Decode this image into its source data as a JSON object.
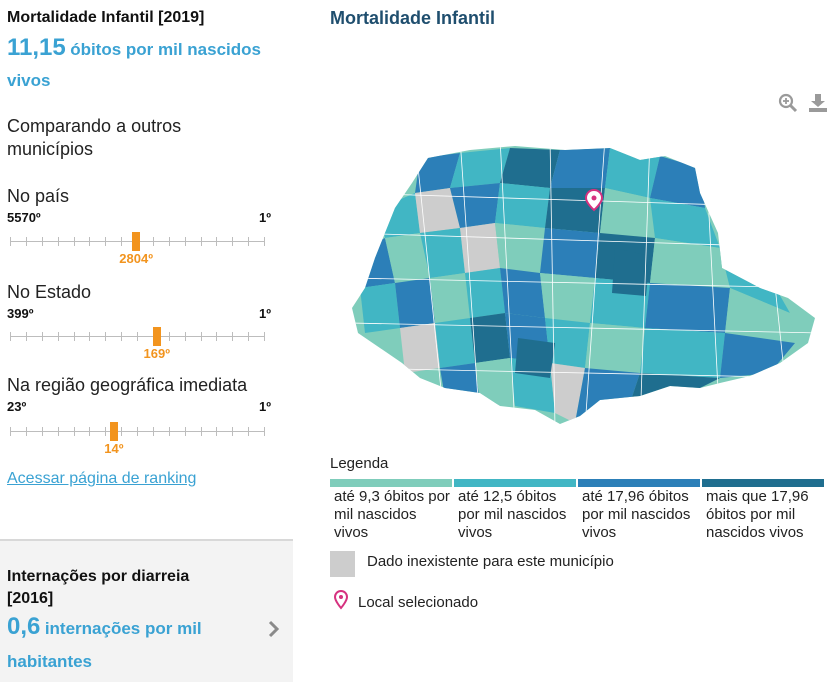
{
  "indicator": {
    "title": "Mortalidade Infantil [2019]",
    "value": "11,15",
    "unit": "óbitos por mil nascidos vivos"
  },
  "comparison": {
    "title": "Comparando a outros municípios",
    "rankings": [
      {
        "label": "No país",
        "low_end": "5570º",
        "high_end": "1º",
        "position": "2804º",
        "total": 5570,
        "rank": 2804
      },
      {
        "label": "No Estado",
        "low_end": "399º",
        "high_end": "1º",
        "position": "169º",
        "total": 399,
        "rank": 169
      },
      {
        "label": "Na região geográfica imediata",
        "low_end": "23º",
        "high_end": "1º",
        "position": "14º",
        "total": 23,
        "rank": 14
      }
    ],
    "ranking_link": "Acessar página de ranking"
  },
  "next_indicator": {
    "title": "Internações por diarreia [2016]",
    "value": "0,6",
    "unit": "internações por mil habitantes",
    "icon": "chevron-right-icon"
  },
  "map": {
    "title": "Mortalidade Infantil",
    "tools": {
      "zoom_icon": "zoom-in-icon",
      "download_icon": "download-icon"
    },
    "legend_title": "Legenda",
    "legend": [
      {
        "label": "até 9,3 óbitos por mil nascidos vivos",
        "color": "#7fcdbb"
      },
      {
        "label": "até 12,5 óbitos por mil nascidos vivos",
        "color": "#41b6c4"
      },
      {
        "label": "até 17,96 óbitos por mil nascidos vivos",
        "color": "#2c7fb8"
      },
      {
        "label": "mais que 17,96 óbitos por mil nascidos vivos",
        "color": "#1f6e8f"
      }
    ],
    "no_data": {
      "label": "Dado inexistente para este município",
      "color": "#cdcdcd"
    },
    "selected": {
      "label": "Local selecionado",
      "color": "#d6317f"
    }
  },
  "colors": {
    "accent": "#3aa2d3",
    "marker": "#f2941e",
    "title": "#1f4e6e"
  }
}
